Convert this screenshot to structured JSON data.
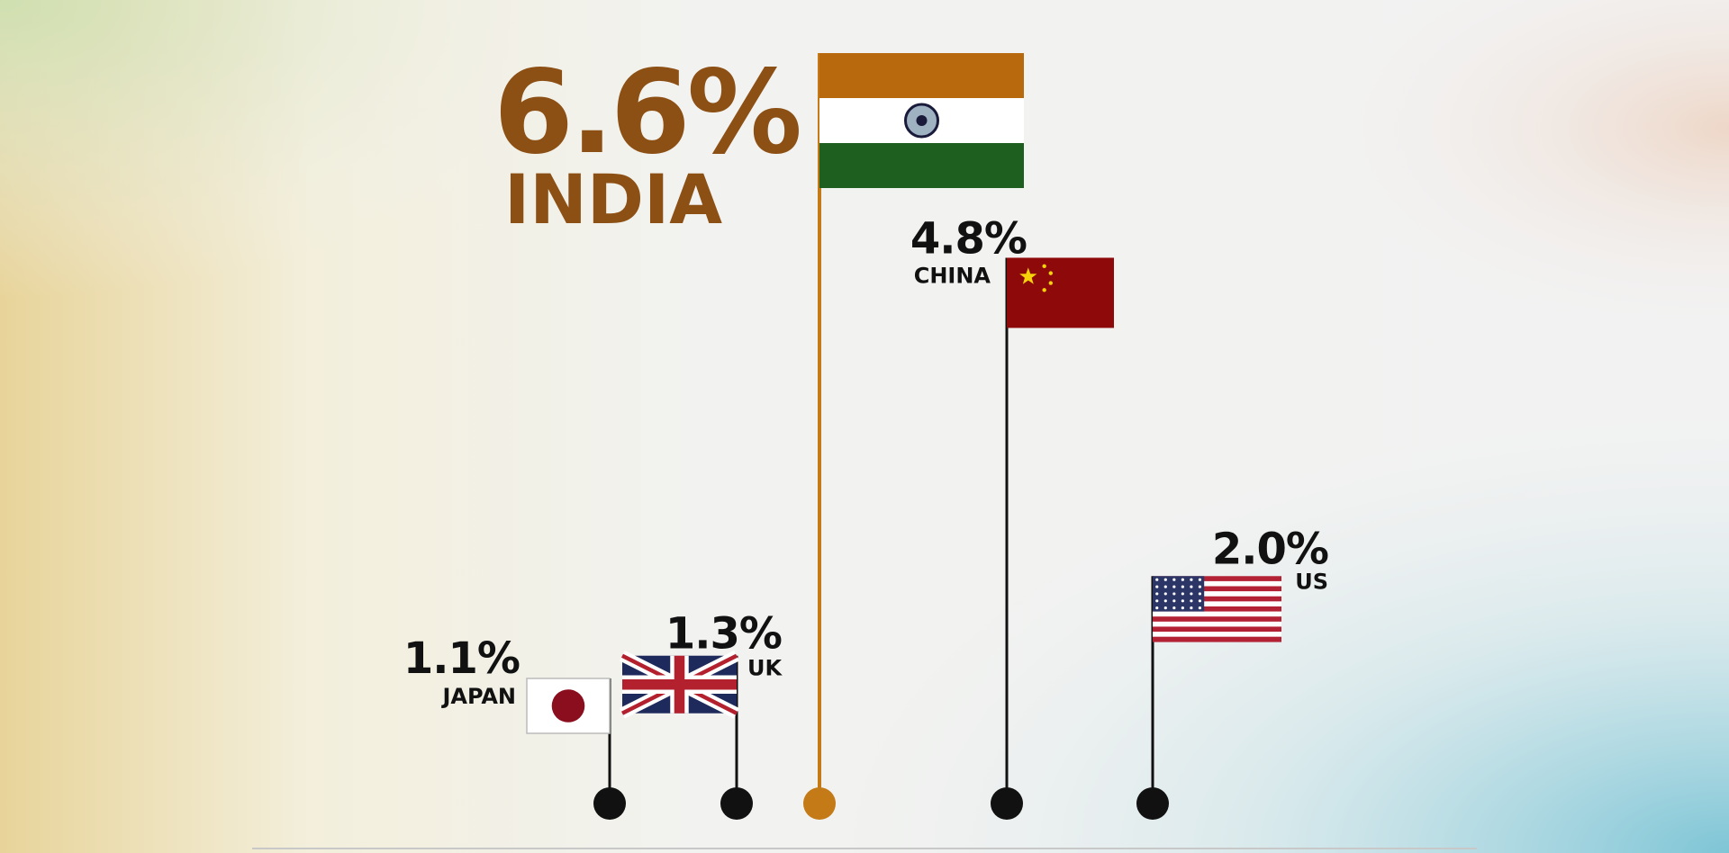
{
  "chart_data": {
    "type": "flagpole",
    "categories": [
      "JAPAN",
      "UK",
      "INDIA",
      "CHINA",
      "US"
    ],
    "values": [
      1.1,
      1.3,
      6.6,
      4.8,
      2.0
    ],
    "value_labels": [
      "1.1%",
      "1.3%",
      "6.6%",
      "4.8%",
      "2.0%"
    ],
    "color": "#111111",
    "highlight_color": "#c47a16",
    "highlight_label_color": "#8c4f14"
  }
}
